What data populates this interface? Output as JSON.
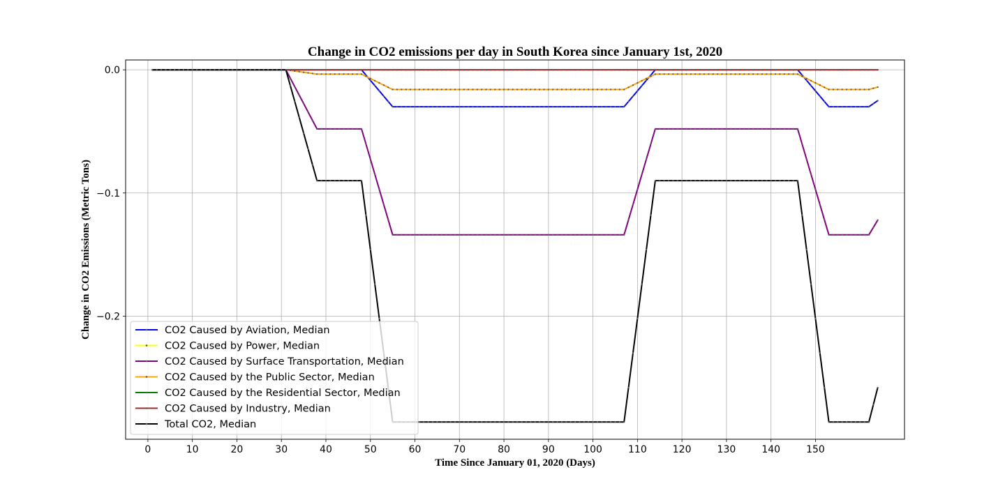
{
  "chart_data": {
    "type": "line",
    "title": "Change in CO2 emissions per day in South Korea since January 1st, 2020",
    "xlabel": "Time Since January 01, 2020 (Days)",
    "ylabel": "Change in CO2 Emissions (Metric Tons)",
    "xlim": [
      -5,
      170
    ],
    "ylim": [
      -0.3,
      0.008
    ],
    "xticks": [
      0,
      10,
      20,
      30,
      40,
      50,
      60,
      70,
      80,
      90,
      100,
      110,
      120,
      130,
      140,
      150
    ],
    "xtick_labels": [
      "0",
      "10",
      "20",
      "30",
      "40",
      "50",
      "60",
      "70",
      "80",
      "90",
      "100",
      "110",
      "120",
      "130",
      "140",
      "150"
    ],
    "yticks": [
      0.0,
      -0.1,
      -0.2
    ],
    "ytick_labels": [
      "0.0",
      "−0.1",
      "−0.2"
    ],
    "grid": true,
    "legend_position": "lower-left",
    "series": [
      {
        "name": "CO2 Caused by Aviation, Median",
        "color": "#0000ff",
        "points": [
          [
            1,
            0
          ],
          [
            31,
            0
          ],
          [
            48,
            0
          ],
          [
            55,
            -0.03
          ],
          [
            107,
            -0.03
          ],
          [
            114,
            0
          ],
          [
            146,
            0
          ],
          [
            153,
            -0.03
          ],
          [
            162,
            -0.03
          ],
          [
            164,
            -0.025
          ]
        ]
      },
      {
        "name": "CO2 Caused by Power, Median",
        "color": "#ffff00",
        "points": [
          [
            1,
            0
          ],
          [
            164,
            0
          ]
        ]
      },
      {
        "name": "CO2 Caused by Surface Transportation, Median",
        "color": "#800080",
        "points": [
          [
            1,
            0
          ],
          [
            31,
            0
          ],
          [
            38,
            -0.048
          ],
          [
            48,
            -0.048
          ],
          [
            55,
            -0.134
          ],
          [
            107,
            -0.134
          ],
          [
            114,
            -0.048
          ],
          [
            146,
            -0.048
          ],
          [
            153,
            -0.134
          ],
          [
            162,
            -0.134
          ],
          [
            164,
            -0.122
          ]
        ]
      },
      {
        "name": "CO2 Caused by the Public Sector, Median",
        "color": "#ffa500",
        "points": [
          [
            1,
            0
          ],
          [
            31,
            0
          ],
          [
            38,
            -0.0035
          ],
          [
            48,
            -0.0035
          ],
          [
            55,
            -0.016
          ],
          [
            107,
            -0.016
          ],
          [
            114,
            -0.0035
          ],
          [
            146,
            -0.0035
          ],
          [
            153,
            -0.016
          ],
          [
            162,
            -0.016
          ],
          [
            164,
            -0.014
          ]
        ]
      },
      {
        "name": "CO2 Caused by the Residential Sector, Median",
        "color": "#008000",
        "points": [
          [
            1,
            0
          ],
          [
            164,
            0
          ]
        ]
      },
      {
        "name": "CO2 Caused by Industry, Median",
        "color": "#a52a2a",
        "points": [
          [
            1,
            0
          ],
          [
            164,
            0
          ]
        ]
      },
      {
        "name": "Total CO2, Median",
        "color": "#000000",
        "points": [
          [
            1,
            0
          ],
          [
            31,
            0
          ],
          [
            38,
            -0.09
          ],
          [
            48,
            -0.09
          ],
          [
            55,
            -0.286
          ],
          [
            107,
            -0.286
          ],
          [
            114,
            -0.09
          ],
          [
            146,
            -0.09
          ],
          [
            153,
            -0.286
          ],
          [
            162,
            -0.286
          ],
          [
            164,
            -0.258
          ]
        ]
      }
    ]
  }
}
